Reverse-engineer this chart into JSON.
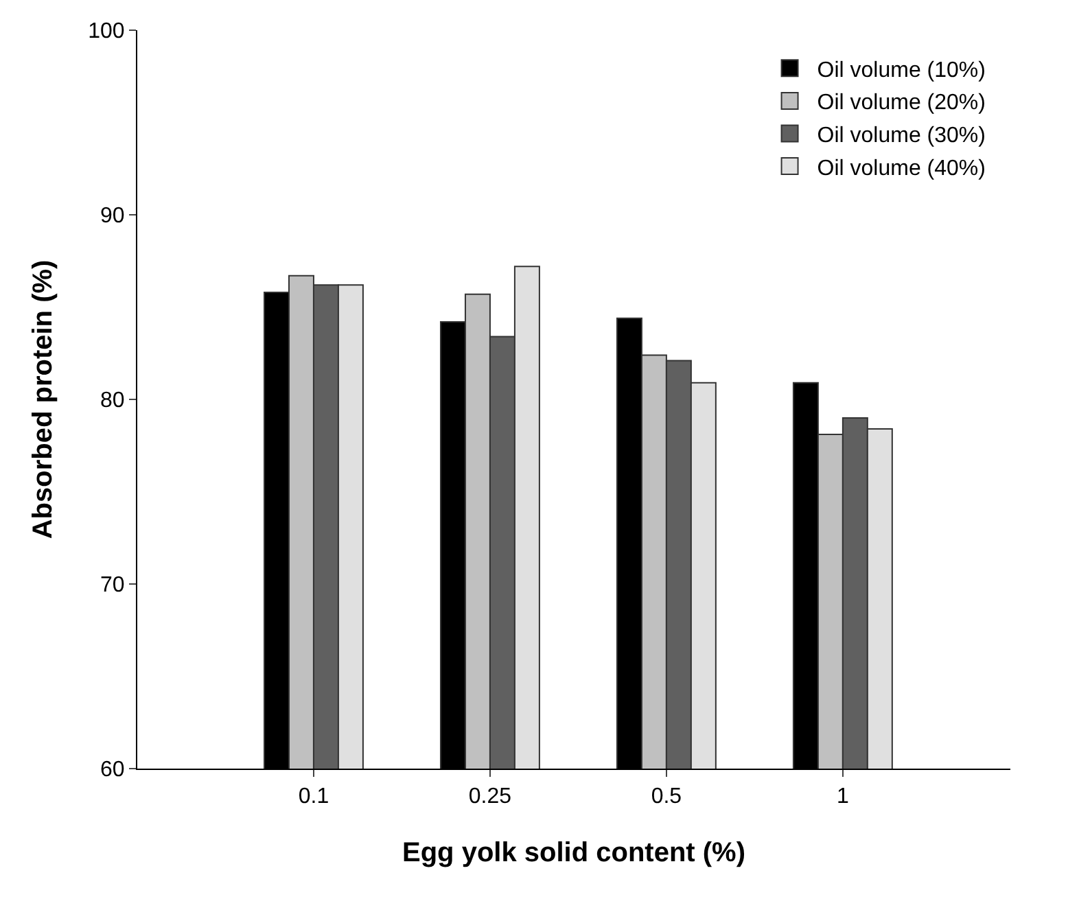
{
  "chart_data": {
    "type": "bar",
    "xlabel": "Egg yolk solid content (%)",
    "ylabel": "Absorbed protein (%)",
    "categories": [
      "0.1",
      "0.25",
      "0.5",
      "1"
    ],
    "series": [
      {
        "name": "Oil volume (10%)",
        "color": "#000000",
        "values": [
          85.8,
          84.2,
          84.4,
          80.9
        ]
      },
      {
        "name": "Oil volume (20%)",
        "color": "#c0c0c0",
        "values": [
          86.7,
          85.7,
          82.4,
          78.1
        ]
      },
      {
        "name": "Oil volume (30%)",
        "color": "#606060",
        "values": [
          86.2,
          83.4,
          82.1,
          79.0
        ]
      },
      {
        "name": "Oil volume (40%)",
        "color": "#e0e0e0",
        "values": [
          86.2,
          87.2,
          80.9,
          78.4
        ]
      }
    ],
    "ylim": [
      60,
      100
    ],
    "yticks": [
      60,
      70,
      80,
      90,
      100
    ],
    "legend": "top right"
  }
}
